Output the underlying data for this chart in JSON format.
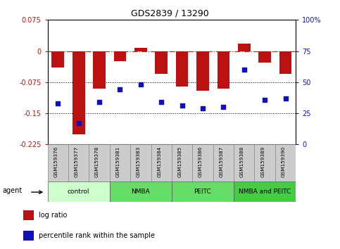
{
  "title": "GDS2839 / 13290",
  "samples": [
    "GSM159376",
    "GSM159377",
    "GSM159378",
    "GSM159381",
    "GSM159383",
    "GSM159384",
    "GSM159385",
    "GSM159386",
    "GSM159387",
    "GSM159388",
    "GSM159389",
    "GSM159390"
  ],
  "log_ratio": [
    -0.04,
    -0.2,
    -0.09,
    -0.025,
    0.008,
    -0.055,
    -0.085,
    -0.095,
    -0.09,
    0.018,
    -0.028,
    -0.055
  ],
  "percentile_rank": [
    33,
    17,
    34,
    44,
    48,
    34,
    31,
    29,
    30,
    60,
    36,
    37
  ],
  "ylim_left": [
    -0.225,
    0.075
  ],
  "ylim_right": [
    0,
    100
  ],
  "yticks_left": [
    0.075,
    0,
    -0.075,
    -0.15,
    -0.225
  ],
  "yticks_right": [
    100,
    75,
    50,
    25,
    0
  ],
  "bar_color": "#bb1111",
  "dot_color": "#1111bb",
  "dash_color": "#cc2222",
  "dotted_lines": [
    -0.075,
    -0.15
  ],
  "groups": [
    {
      "label": "control",
      "start": 0,
      "end": 3,
      "color": "#ccffcc"
    },
    {
      "label": "NMBA",
      "start": 3,
      "end": 6,
      "color": "#66dd66"
    },
    {
      "label": "PEITC",
      "start": 6,
      "end": 9,
      "color": "#66dd66"
    },
    {
      "label": "NMBA and PEITC",
      "start": 9,
      "end": 12,
      "color": "#44cc44"
    }
  ],
  "sample_box_color": "#cccccc",
  "legend_items": [
    {
      "label": "log ratio",
      "color": "#bb1111"
    },
    {
      "label": "percentile rank within the sample",
      "color": "#1111bb"
    }
  ],
  "agent_label": "agent",
  "fig_width": 4.83,
  "fig_height": 3.54
}
